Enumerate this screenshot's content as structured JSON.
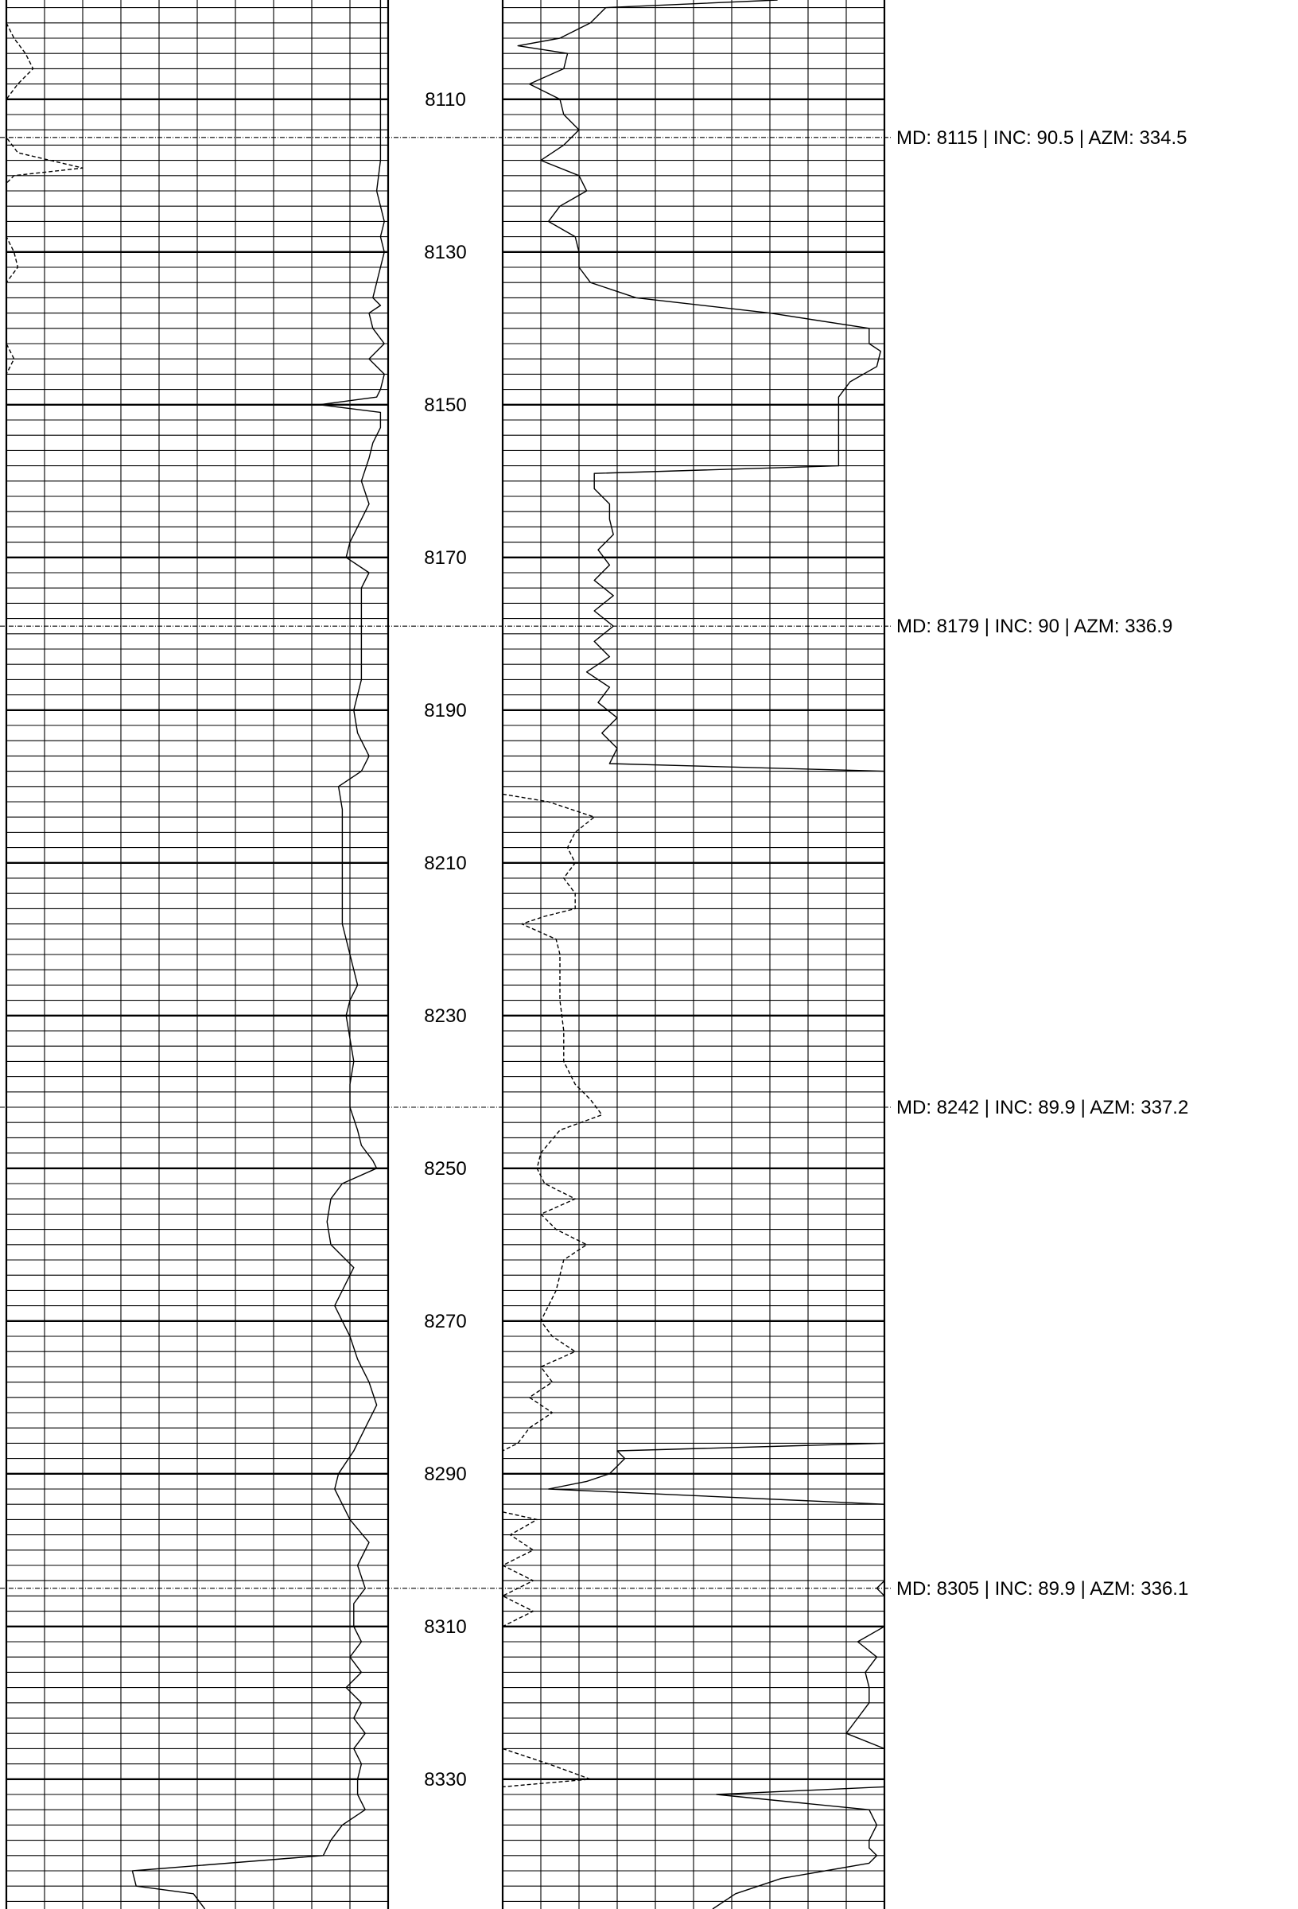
{
  "chart_data": {
    "type": "line",
    "title": "",
    "depth_range": [
      8097,
      8347
    ],
    "colors": {
      "line": "#000000",
      "grid": "#000000",
      "background": "#ffffff"
    },
    "depth_labels": [
      "8110",
      "8130",
      "8150",
      "8170",
      "8190",
      "8210",
      "8230",
      "8250",
      "8270",
      "8290",
      "8310",
      "8330"
    ],
    "survey_markers": [
      {
        "md": 8115,
        "label": "MD: 8115 | INC: 90.5 | AZM: 334.5"
      },
      {
        "md": 8179,
        "label": "MD: 8179 | INC: 90 | AZM: 336.9"
      },
      {
        "md": 8242,
        "label": "MD: 8242 | INC: 89.9 | AZM: 337.2"
      },
      {
        "md": 8305,
        "label": "MD: 8305 | INC: 89.9 | AZM: 336.1"
      }
    ],
    "left_track": {
      "grid_divisions": 10,
      "series": [
        {
          "style": "solid",
          "points": [
            [
              8097,
              0.98
            ],
            [
              8102,
              0.98
            ],
            [
              8106,
              0.98
            ],
            [
              8110,
              0.98
            ],
            [
              8114,
              0.98
            ],
            [
              8118,
              0.98
            ],
            [
              8122,
              0.97
            ],
            [
              8124,
              0.98
            ],
            [
              8126,
              0.99
            ],
            [
              8128,
              0.98
            ],
            [
              8130,
              0.99
            ],
            [
              8132,
              0.98
            ],
            [
              8134,
              0.97
            ],
            [
              8136,
              0.96
            ],
            [
              8137,
              0.98
            ],
            [
              8138,
              0.95
            ],
            [
              8140,
              0.96
            ],
            [
              8142,
              0.99
            ],
            [
              8144,
              0.95
            ],
            [
              8146,
              0.99
            ],
            [
              8148,
              0.98
            ],
            [
              8149,
              0.97
            ],
            [
              8150,
              0.82
            ],
            [
              8151,
              0.98
            ],
            [
              8153,
              0.98
            ],
            [
              8155,
              0.96
            ],
            [
              8157,
              0.95
            ],
            [
              8160,
              0.93
            ],
            [
              8163,
              0.95
            ],
            [
              8166,
              0.92
            ],
            [
              8168,
              0.9
            ],
            [
              8170,
              0.89
            ],
            [
              8172,
              0.95
            ],
            [
              8174,
              0.93
            ],
            [
              8176,
              0.93
            ],
            [
              8178,
              0.93
            ],
            [
              8180,
              0.93
            ],
            [
              8183,
              0.93
            ],
            [
              8186,
              0.93
            ],
            [
              8188,
              0.92
            ],
            [
              8190,
              0.91
            ],
            [
              8193,
              0.92
            ],
            [
              8196,
              0.95
            ],
            [
              8198,
              0.93
            ],
            [
              8200,
              0.87
            ],
            [
              8203,
              0.88
            ],
            [
              8206,
              0.88
            ],
            [
              8210,
              0.88
            ],
            [
              8214,
              0.88
            ],
            [
              8218,
              0.88
            ],
            [
              8222,
              0.9
            ],
            [
              8226,
              0.92
            ],
            [
              8228,
              0.9
            ],
            [
              8230,
              0.89
            ],
            [
              8233,
              0.9
            ],
            [
              8236,
              0.91
            ],
            [
              8239,
              0.9
            ],
            [
              8242,
              0.9
            ],
            [
              8245,
              0.92
            ],
            [
              8247,
              0.93
            ],
            [
              8249,
              0.96
            ],
            [
              8250,
              0.97
            ],
            [
              8252,
              0.88
            ],
            [
              8254,
              0.85
            ],
            [
              8257,
              0.84
            ],
            [
              8260,
              0.85
            ],
            [
              8263,
              0.91
            ],
            [
              8266,
              0.88
            ],
            [
              8268,
              0.86
            ],
            [
              8270,
              0.88
            ],
            [
              8272,
              0.9
            ],
            [
              8275,
              0.92
            ],
            [
              8278,
              0.95
            ],
            [
              8281,
              0.97
            ],
            [
              8284,
              0.94
            ],
            [
              8287,
              0.91
            ],
            [
              8290,
              0.87
            ],
            [
              8292,
              0.86
            ],
            [
              8294,
              0.88
            ],
            [
              8296,
              0.9
            ],
            [
              8299,
              0.95
            ],
            [
              8302,
              0.92
            ],
            [
              8305,
              0.94
            ],
            [
              8307,
              0.91
            ],
            [
              8310,
              0.91
            ],
            [
              8312,
              0.93
            ],
            [
              8314,
              0.9
            ],
            [
              8316,
              0.93
            ],
            [
              8318,
              0.89
            ],
            [
              8320,
              0.93
            ],
            [
              8322,
              0.91
            ],
            [
              8324,
              0.94
            ],
            [
              8326,
              0.91
            ],
            [
              8328,
              0.93
            ],
            [
              8330,
              0.92
            ],
            [
              8332,
              0.92
            ],
            [
              8334,
              0.94
            ],
            [
              8336,
              0.88
            ],
            [
              8338,
              0.85
            ],
            [
              8340,
              0.83
            ],
            [
              8342,
              0.33
            ],
            [
              8344,
              0.34
            ],
            [
              8345,
              0.49
            ],
            [
              8347,
              0.52
            ]
          ]
        },
        {
          "style": "dashed",
          "points": [
            [
              8100,
              0.0
            ],
            [
              8102,
              0.02
            ],
            [
              8104,
              0.05
            ],
            [
              8106,
              0.07
            ],
            [
              8108,
              0.03
            ],
            [
              8110,
              0.0
            ],
            [
              8115,
              0.0
            ],
            [
              8117,
              0.03
            ],
            [
              8119,
              0.2
            ],
            [
              8120,
              0.02
            ],
            [
              8121,
              0.0
            ],
            [
              8128,
              0.0
            ],
            [
              8130,
              0.02
            ],
            [
              8132,
              0.03
            ],
            [
              8134,
              0.0
            ],
            [
              8142,
              0.0
            ],
            [
              8144,
              0.02
            ],
            [
              8146,
              0.0
            ]
          ]
        }
      ]
    },
    "right_track": {
      "grid_divisions": 10,
      "series": [
        {
          "style": "solid",
          "points": [
            [
              8097,
              0.72
            ],
            [
              8098,
              0.27
            ],
            [
              8100,
              0.23
            ],
            [
              8102,
              0.15
            ],
            [
              8103,
              0.04
            ],
            [
              8104,
              0.17
            ],
            [
              8106,
              0.16
            ],
            [
              8108,
              0.07
            ],
            [
              8110,
              0.15
            ],
            [
              8112,
              0.16
            ],
            [
              8114,
              0.2
            ],
            [
              8116,
              0.16
            ],
            [
              8118,
              0.1
            ],
            [
              8120,
              0.2
            ],
            [
              8122,
              0.22
            ],
            [
              8124,
              0.15
            ],
            [
              8126,
              0.12
            ],
            [
              8128,
              0.19
            ],
            [
              8130,
              0.2
            ],
            [
              8132,
              0.2
            ],
            [
              8134,
              0.23
            ],
            [
              8136,
              0.35
            ],
            [
              8138,
              0.7
            ],
            [
              8140,
              0.96
            ],
            [
              8142,
              0.96
            ],
            [
              8143,
              0.99
            ],
            [
              8145,
              0.98
            ],
            [
              8147,
              0.91
            ],
            [
              8149,
              0.88
            ],
            [
              8152,
              0.88
            ],
            [
              8156,
              0.88
            ],
            [
              8158,
              0.88
            ],
            [
              8159,
              0.24
            ],
            [
              8161,
              0.24
            ],
            [
              8163,
              0.28
            ],
            [
              8165,
              0.28
            ],
            [
              8167,
              0.29
            ],
            [
              8169,
              0.25
            ],
            [
              8171,
              0.28
            ],
            [
              8173,
              0.24
            ],
            [
              8175,
              0.29
            ],
            [
              8177,
              0.24
            ],
            [
              8179,
              0.29
            ],
            [
              8181,
              0.24
            ],
            [
              8183,
              0.28
            ],
            [
              8185,
              0.22
            ],
            [
              8187,
              0.28
            ],
            [
              8189,
              0.25
            ],
            [
              8191,
              0.3
            ],
            [
              8193,
              0.26
            ],
            [
              8195,
              0.3
            ],
            [
              8197,
              0.28
            ],
            [
              8198,
              1.0
            ],
            [
              8200,
              1.0
            ]
          ]
        },
        {
          "style": "dashed",
          "points": [
            [
              8201,
              0.0
            ],
            [
              8202,
              0.12
            ],
            [
              8204,
              0.24
            ],
            [
              8206,
              0.19
            ],
            [
              8208,
              0.17
            ],
            [
              8210,
              0.19
            ],
            [
              8212,
              0.16
            ],
            [
              8214,
              0.19
            ],
            [
              8216,
              0.19
            ],
            [
              8217,
              0.11
            ],
            [
              8218,
              0.05
            ],
            [
              8220,
              0.14
            ],
            [
              8222,
              0.15
            ],
            [
              8224,
              0.15
            ],
            [
              8226,
              0.15
            ],
            [
              8228,
              0.15
            ],
            [
              8232,
              0.16
            ],
            [
              8236,
              0.16
            ],
            [
              8239,
              0.19
            ],
            [
              8241,
              0.23
            ],
            [
              8243,
              0.26
            ],
            [
              8245,
              0.15
            ],
            [
              8248,
              0.1
            ],
            [
              8250,
              0.09
            ],
            [
              8252,
              0.11
            ],
            [
              8254,
              0.19
            ],
            [
              8256,
              0.1
            ],
            [
              8258,
              0.14
            ],
            [
              8260,
              0.22
            ],
            [
              8262,
              0.16
            ],
            [
              8264,
              0.15
            ],
            [
              8266,
              0.14
            ],
            [
              8268,
              0.12
            ],
            [
              8270,
              0.1
            ],
            [
              8272,
              0.13
            ],
            [
              8274,
              0.19
            ],
            [
              8276,
              0.1
            ],
            [
              8278,
              0.13
            ],
            [
              8280,
              0.07
            ],
            [
              8282,
              0.13
            ],
            [
              8284,
              0.07
            ],
            [
              8286,
              0.04
            ],
            [
              8287,
              0.0
            ]
          ]
        },
        {
          "style": "solid",
          "points": [
            [
              8286,
              1.0
            ],
            [
              8287,
              0.3
            ],
            [
              8288,
              0.32
            ],
            [
              8289,
              0.3
            ],
            [
              8290,
              0.28
            ],
            [
              8291,
              0.22
            ],
            [
              8292,
              0.12
            ],
            [
              8294,
              1.0
            ]
          ]
        },
        {
          "style": "dashed",
          "points": [
            [
              8295,
              0.0
            ],
            [
              8296,
              0.09
            ],
            [
              8298,
              0.02
            ],
            [
              8300,
              0.08
            ],
            [
              8302,
              0.0
            ],
            [
              8304,
              0.08
            ],
            [
              8306,
              0.0
            ],
            [
              8308,
              0.08
            ],
            [
              8310,
              0.0
            ]
          ]
        },
        {
          "style": "solid",
          "points": [
            [
              8304,
              1.0
            ],
            [
              8305,
              0.98
            ],
            [
              8306,
              1.0
            ]
          ]
        },
        {
          "style": "solid",
          "points": [
            [
              8310,
              1.0
            ],
            [
              8312,
              0.93
            ],
            [
              8314,
              0.98
            ],
            [
              8316,
              0.95
            ],
            [
              8318,
              0.96
            ],
            [
              8320,
              0.96
            ],
            [
              8322,
              0.93
            ],
            [
              8324,
              0.9
            ],
            [
              8326,
              1.0
            ]
          ]
        },
        {
          "style": "dashed",
          "points": [
            [
              8326,
              0.0
            ],
            [
              8328,
              0.12
            ],
            [
              8330,
              0.23
            ],
            [
              8331,
              0.0
            ]
          ]
        },
        {
          "style": "solid",
          "points": [
            [
              8331,
              1.0
            ],
            [
              8332,
              0.56
            ],
            [
              8334,
              0.96
            ],
            [
              8336,
              0.98
            ],
            [
              8338,
              0.96
            ],
            [
              8339,
              0.96
            ],
            [
              8340,
              0.98
            ],
            [
              8341,
              0.96
            ],
            [
              8343,
              0.73
            ],
            [
              8345,
              0.61
            ],
            [
              8347,
              0.55
            ]
          ]
        }
      ]
    }
  }
}
